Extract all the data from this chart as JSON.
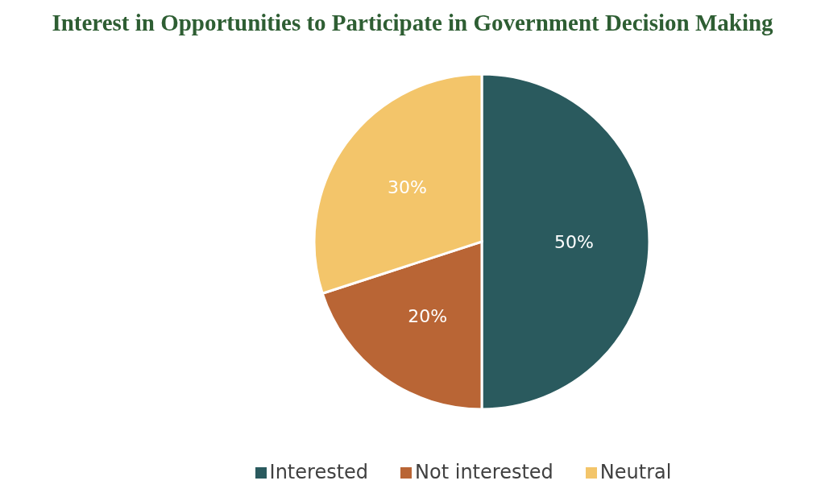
{
  "chart_data": {
    "type": "pie",
    "title": "Interest in Opportunities to Participate in Government Decision Making",
    "categories": [
      "Interested",
      "Not interested",
      "Neutral"
    ],
    "values": [
      50,
      20,
      30
    ],
    "colors": [
      "#2a5a5e",
      "#b96535",
      "#f3c56a"
    ],
    "value_labels": [
      "50%",
      "20%",
      "30%"
    ],
    "legend": "bottom"
  }
}
